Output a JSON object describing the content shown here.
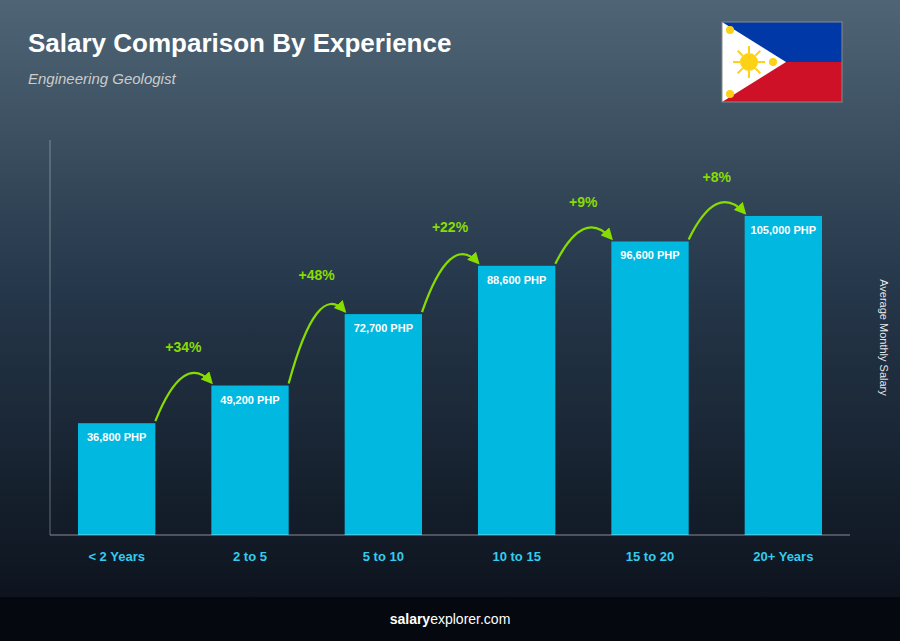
{
  "chart_data": {
    "type": "bar",
    "title": "Salary Comparison By Experience",
    "subtitle": "Engineering Geologist",
    "y_label": "Average Monthly Salary",
    "categories": [
      "< 2 Years",
      "2 to 5",
      "5 to 10",
      "10 to 15",
      "15 to 20",
      "20+ Years"
    ],
    "values": [
      36800,
      49200,
      72700,
      88600,
      96600,
      105000
    ],
    "value_labels": [
      "36,800 PHP",
      "49,200 PHP",
      "72,700 PHP",
      "88,600 PHP",
      "96,600 PHP",
      "105,000 PHP"
    ],
    "annotations": [
      "+34%",
      "+48%",
      "+22%",
      "+9%",
      "+8%"
    ],
    "footer": [
      "salary",
      "explorer.com"
    ],
    "color": "#00b8e0",
    "ylim": [
      0,
      130000
    ],
    "data_labels": true,
    "tick_labels": "x"
  }
}
